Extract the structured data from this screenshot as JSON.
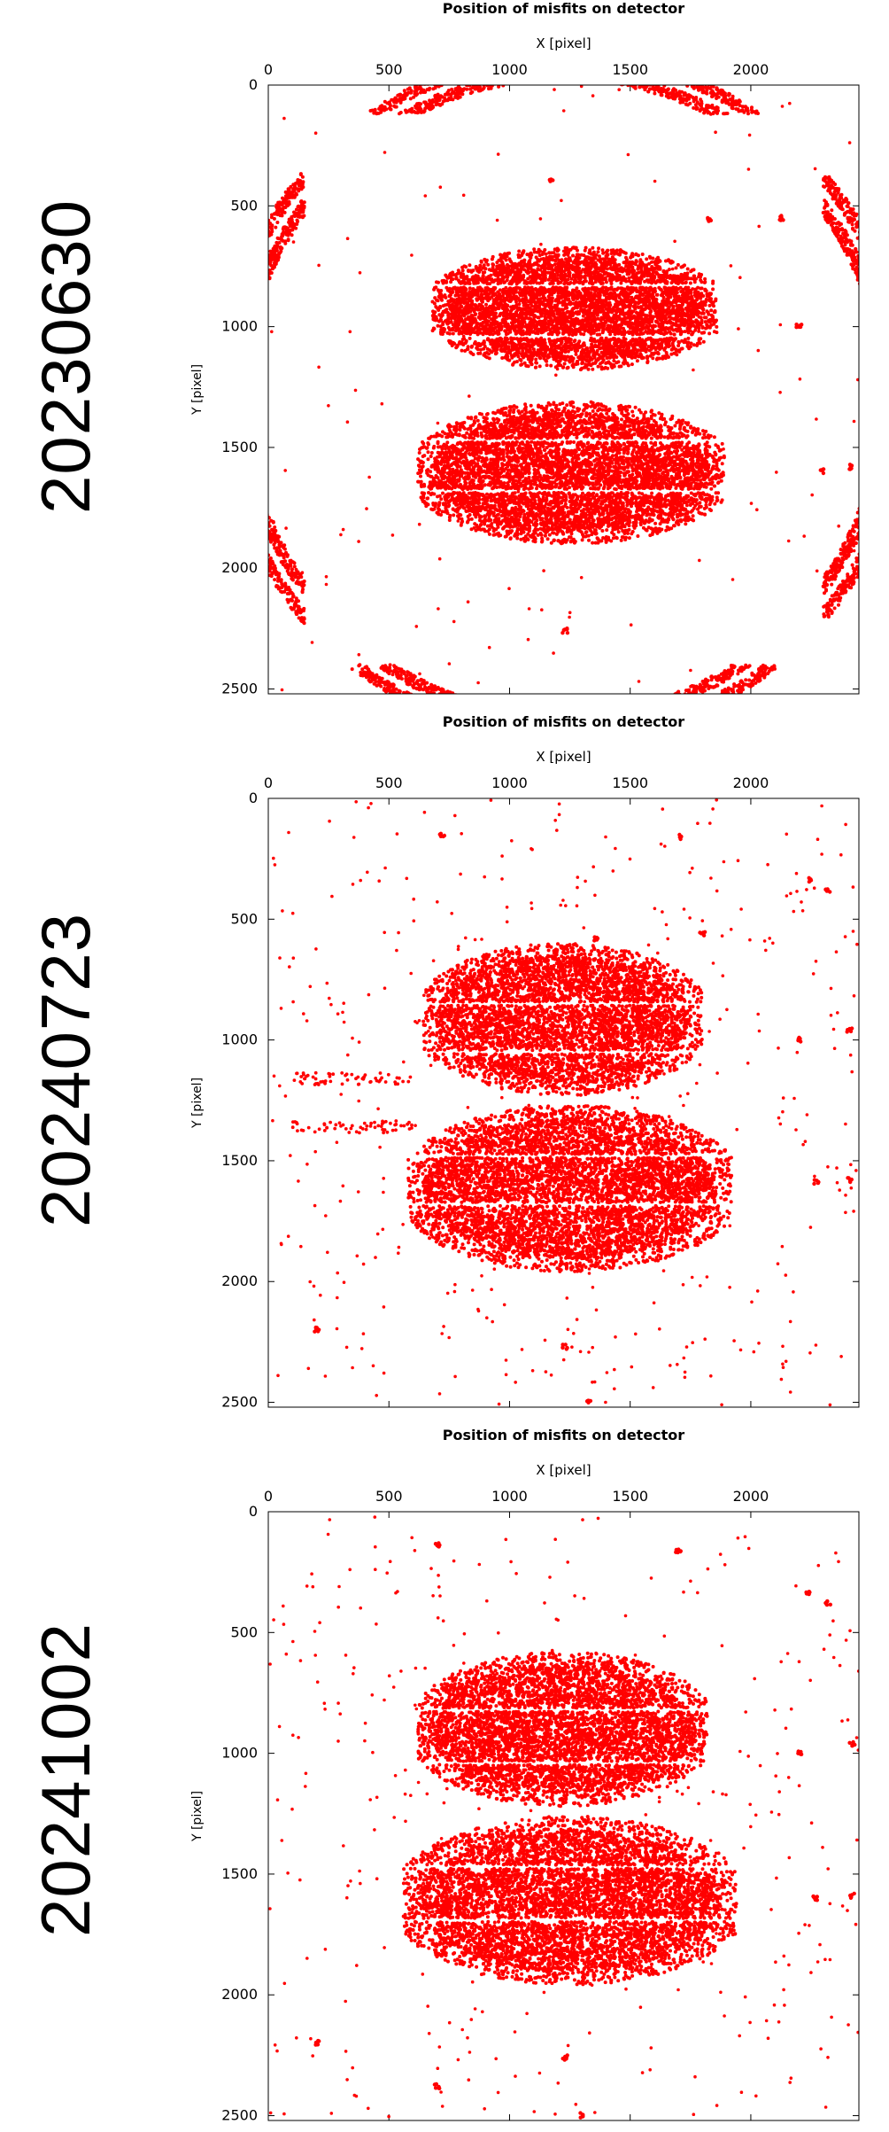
{
  "chart_data": [
    {
      "type": "scatter",
      "date_label": "20230630",
      "title": "Position of misfits on detector",
      "xlabel": "X [pixel]",
      "ylabel": "Y [pixel]",
      "xlim": [
        0,
        2448
      ],
      "ylim": [
        2520,
        0
      ],
      "x_ticks": [
        "0",
        "500",
        "1000",
        "1500",
        "2000"
      ],
      "y_ticks": [
        "0",
        "500",
        "1000",
        "1500",
        "2000",
        "2500"
      ],
      "grid": false,
      "color": "#ff0000",
      "series": [
        {
          "role": "center_band",
          "count": 5200,
          "x_range": [
            680,
            1860
          ],
          "y_range": [
            670,
            1180
          ],
          "gaps_y": [
            830,
            1040
          ]
        },
        {
          "role": "center_band",
          "count": 6000,
          "x_range": [
            620,
            1890
          ],
          "y_range": [
            1310,
            1900
          ],
          "gaps_y": [
            1470,
            1680
          ]
        },
        {
          "role": "ring_arcs",
          "count": 3200,
          "center": [
            1224,
            1290
          ],
          "radius_range": [
            1310,
            1430
          ],
          "split_radius": 1370
        },
        {
          "role": "sparse",
          "count": 130,
          "x_range": [
            0,
            2448
          ],
          "y_range": [
            0,
            2520
          ]
        },
        {
          "role": "clusters",
          "points": [
            [
              2200,
              1000
            ],
            [
              2300,
              1600
            ],
            [
              2420,
              1580
            ],
            [
              1230,
              2260
            ],
            [
              1170,
              400
            ],
            [
              1830,
              560
            ],
            [
              2130,
              550
            ]
          ]
        }
      ]
    },
    {
      "type": "scatter",
      "date_label": "20240723",
      "title": "Position of misfits on detector",
      "xlabel": "X [pixel]",
      "ylabel": "Y [pixel]",
      "xlim": [
        0,
        2448
      ],
      "ylim": [
        2520,
        0
      ],
      "x_ticks": [
        "0",
        "500",
        "1000",
        "1500",
        "2000"
      ],
      "y_ticks": [
        "0",
        "500",
        "1000",
        "1500",
        "2000",
        "2500"
      ],
      "grid": false,
      "color": "#ff0000",
      "series": [
        {
          "role": "center_band",
          "count": 4800,
          "x_range": [
            640,
            1800
          ],
          "y_range": [
            600,
            1230
          ],
          "gaps_y": [
            850,
            1050
          ]
        },
        {
          "role": "center_band",
          "count": 6000,
          "x_range": [
            580,
            1920
          ],
          "y_range": [
            1270,
            1960
          ],
          "gaps_y": [
            1480,
            1680
          ]
        },
        {
          "role": "sparse",
          "count": 420,
          "x_range": [
            0,
            2448
          ],
          "y_range": [
            0,
            2520
          ]
        },
        {
          "role": "streaks",
          "rows": [
            1160,
            1360
          ],
          "x_range": [
            100,
            600
          ],
          "count": 120
        },
        {
          "role": "clusters",
          "points": [
            [
              200,
              2200
            ],
            [
              720,
              150
            ],
            [
              1710,
              160
            ],
            [
              2250,
              340
            ],
            [
              2320,
              380
            ],
            [
              2200,
              1000
            ],
            [
              2270,
              1590
            ],
            [
              2410,
              1580
            ],
            [
              2410,
              960
            ],
            [
              1230,
              2270
            ],
            [
              1330,
              2500
            ],
            [
              1800,
              560
            ],
            [
              1360,
              580
            ]
          ]
        }
      ]
    },
    {
      "type": "scatter",
      "date_label": "20241002",
      "title": "Position of misfits on detector",
      "xlabel": "X [pixel]",
      "ylabel": "Y [pixel]",
      "xlim": [
        0,
        2448
      ],
      "ylim": [
        2520,
        0
      ],
      "x_ticks": [
        "0",
        "500",
        "1000",
        "1500",
        "2000"
      ],
      "y_ticks": [
        "0",
        "500",
        "1000",
        "1500",
        "2000",
        "2500"
      ],
      "grid": false,
      "color": "#ff0000",
      "series": [
        {
          "role": "center_band",
          "count": 5200,
          "x_range": [
            620,
            1820
          ],
          "y_range": [
            580,
            1220
          ],
          "gaps_y": [
            820,
            1040
          ]
        },
        {
          "role": "center_band",
          "count": 6200,
          "x_range": [
            560,
            1940
          ],
          "y_range": [
            1260,
            1960
          ],
          "gaps_y": [
            1470,
            1690
          ]
        },
        {
          "role": "sparse",
          "count": 360,
          "x_range": [
            0,
            2448
          ],
          "y_range": [
            0,
            2520
          ]
        },
        {
          "role": "clusters",
          "points": [
            [
              200,
              2200
            ],
            [
              700,
              140
            ],
            [
              1700,
              160
            ],
            [
              2240,
              340
            ],
            [
              2320,
              380
            ],
            [
              2200,
              1000
            ],
            [
              2270,
              1600
            ],
            [
              2420,
              1590
            ],
            [
              2420,
              960
            ],
            [
              1230,
              2260
            ],
            [
              1300,
              2500
            ],
            [
              700,
              2380
            ]
          ]
        }
      ]
    }
  ]
}
